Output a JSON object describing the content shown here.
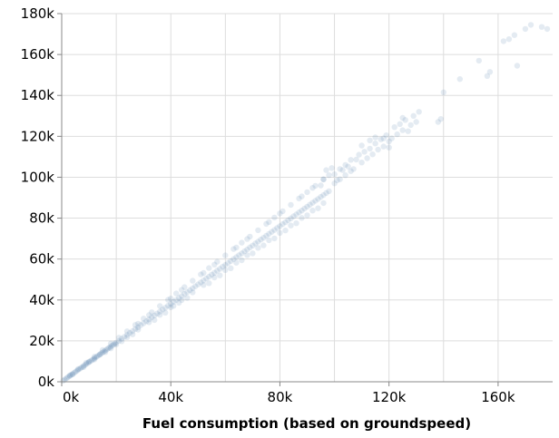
{
  "chart_data": {
    "type": "scatter",
    "title": "",
    "xlabel": "Fuel consumption (based on groundspeed)",
    "ylabel": "",
    "xlim": [
      0,
      180000
    ],
    "ylim": [
      0,
      180000
    ],
    "grid": true,
    "point_color": "#4c78a8",
    "point_opacity": 0.15,
    "x_ticks": [
      {
        "value": 0,
        "label": "0k"
      },
      {
        "value": 40000,
        "label": "40k"
      },
      {
        "value": 80000,
        "label": "80k"
      },
      {
        "value": 120000,
        "label": "120k"
      },
      {
        "value": 160000,
        "label": "160k"
      }
    ],
    "y_ticks": [
      {
        "value": 0,
        "label": "0k"
      },
      {
        "value": 20000,
        "label": "20k"
      },
      {
        "value": 40000,
        "label": "40k"
      },
      {
        "value": 60000,
        "label": "60k"
      },
      {
        "value": 80000,
        "label": "80k"
      },
      {
        "value": 100000,
        "label": "100k"
      },
      {
        "value": 120000,
        "label": "120k"
      },
      {
        "value": 140000,
        "label": "140k"
      },
      {
        "value": 160000,
        "label": "160k"
      },
      {
        "value": 180000,
        "label": "180k"
      }
    ],
    "points": [
      [
        500,
        480
      ],
      [
        1000,
        960
      ],
      [
        1500,
        1450
      ],
      [
        2000,
        1950
      ],
      [
        2500,
        2420
      ],
      [
        3000,
        2900
      ],
      [
        3500,
        3400
      ],
      [
        4000,
        3850
      ],
      [
        4500,
        4350
      ],
      [
        5000,
        4800
      ],
      [
        5500,
        5300
      ],
      [
        6000,
        5750
      ],
      [
        6500,
        6250
      ],
      [
        7000,
        6700
      ],
      [
        7500,
        7200
      ],
      [
        8000,
        7700
      ],
      [
        8500,
        8150
      ],
      [
        9000,
        8650
      ],
      [
        9500,
        9100
      ],
      [
        10000,
        9600
      ],
      [
        10500,
        10100
      ],
      [
        11000,
        10500
      ],
      [
        11500,
        11000
      ],
      [
        12000,
        11500
      ],
      [
        12500,
        12000
      ],
      [
        13000,
        12400
      ],
      [
        13500,
        12900
      ],
      [
        14000,
        13400
      ],
      [
        14500,
        13900
      ],
      [
        15000,
        14300
      ],
      [
        15500,
        14800
      ],
      [
        16000,
        15300
      ],
      [
        16500,
        15800
      ],
      [
        17000,
        16300
      ],
      [
        17500,
        16700
      ],
      [
        18000,
        17200
      ],
      [
        18500,
        17700
      ],
      [
        19000,
        18200
      ],
      [
        19500,
        18700
      ],
      [
        20000,
        19100
      ],
      [
        21000,
        20000
      ],
      [
        22000,
        21000
      ],
      [
        23000,
        22000
      ],
      [
        24000,
        22900
      ],
      [
        25000,
        23900
      ],
      [
        26000,
        24800
      ],
      [
        27000,
        25800
      ],
      [
        28000,
        26700
      ],
      [
        29000,
        27700
      ],
      [
        30000,
        28600
      ],
      [
        31000,
        29600
      ],
      [
        32000,
        30500
      ],
      [
        33000,
        31500
      ],
      [
        34000,
        32400
      ],
      [
        35000,
        33400
      ],
      [
        36000,
        34300
      ],
      [
        37000,
        35300
      ],
      [
        38000,
        36200
      ],
      [
        39000,
        37200
      ],
      [
        40000,
        38100
      ],
      [
        41000,
        39100
      ],
      [
        42000,
        40000
      ],
      [
        43000,
        41000
      ],
      [
        44000,
        41900
      ],
      [
        45000,
        42900
      ],
      [
        46000,
        43800
      ],
      [
        47000,
        44800
      ],
      [
        48000,
        45700
      ],
      [
        49000,
        46700
      ],
      [
        50000,
        47600
      ],
      [
        51000,
        48600
      ],
      [
        52000,
        49500
      ],
      [
        53000,
        50500
      ],
      [
        54000,
        51400
      ],
      [
        55000,
        52400
      ],
      [
        56000,
        53300
      ],
      [
        57000,
        54300
      ],
      [
        58000,
        55200
      ],
      [
        59000,
        56200
      ],
      [
        60000,
        57100
      ],
      [
        61000,
        58100
      ],
      [
        62000,
        59000
      ],
      [
        63000,
        60000
      ],
      [
        64000,
        60900
      ],
      [
        65000,
        61900
      ],
      [
        66000,
        62800
      ],
      [
        67000,
        63800
      ],
      [
        68000,
        64700
      ],
      [
        69000,
        65700
      ],
      [
        70000,
        66600
      ],
      [
        71000,
        67600
      ],
      [
        72000,
        68500
      ],
      [
        73000,
        69500
      ],
      [
        74000,
        70400
      ],
      [
        75000,
        71400
      ],
      [
        76000,
        72300
      ],
      [
        77000,
        73300
      ],
      [
        78000,
        74200
      ],
      [
        79000,
        75200
      ],
      [
        80000,
        76100
      ],
      [
        81000,
        77100
      ],
      [
        82000,
        78000
      ],
      [
        83000,
        79000
      ],
      [
        84000,
        79900
      ],
      [
        85000,
        80900
      ],
      [
        86000,
        81800
      ],
      [
        87000,
        82800
      ],
      [
        88000,
        83700
      ],
      [
        89000,
        84700
      ],
      [
        90000,
        85600
      ],
      [
        91000,
        86600
      ],
      [
        92000,
        87500
      ],
      [
        93000,
        88500
      ],
      [
        94000,
        89400
      ],
      [
        95000,
        90400
      ],
      [
        96000,
        91300
      ],
      [
        97000,
        92300
      ],
      [
        98000,
        93200
      ],
      [
        3000,
        3100
      ],
      [
        6000,
        6200
      ],
      [
        9000,
        9300
      ],
      [
        12000,
        12300
      ],
      [
        15000,
        15500
      ],
      [
        18000,
        18600
      ],
      [
        21000,
        21600
      ],
      [
        24000,
        24700
      ],
      [
        27000,
        27800
      ],
      [
        30000,
        30900
      ],
      [
        33000,
        34000
      ],
      [
        36000,
        37000
      ],
      [
        39000,
        40100
      ],
      [
        42000,
        43200
      ],
      [
        45000,
        46300
      ],
      [
        48000,
        49400
      ],
      [
        51000,
        52500
      ],
      [
        54000,
        55600
      ],
      [
        57000,
        58700
      ],
      [
        60000,
        61800
      ],
      [
        63000,
        64900
      ],
      [
        66000,
        68000
      ],
      [
        69000,
        71000
      ],
      [
        72000,
        74100
      ],
      [
        75000,
        77200
      ],
      [
        78000,
        80300
      ],
      [
        81000,
        83400
      ],
      [
        84000,
        86500
      ],
      [
        87000,
        89600
      ],
      [
        90000,
        92700
      ],
      [
        93000,
        95800
      ],
      [
        96000,
        98900
      ],
      [
        4000,
        3600
      ],
      [
        8000,
        7200
      ],
      [
        12000,
        10900
      ],
      [
        16000,
        14500
      ],
      [
        20000,
        18200
      ],
      [
        24000,
        21800
      ],
      [
        28000,
        25500
      ],
      [
        32000,
        29100
      ],
      [
        36000,
        32700
      ],
      [
        40000,
        36400
      ],
      [
        44000,
        40000
      ],
      [
        48000,
        43700
      ],
      [
        52000,
        47300
      ],
      [
        56000,
        51000
      ],
      [
        60000,
        54600
      ],
      [
        64000,
        58200
      ],
      [
        68000,
        61900
      ],
      [
        72000,
        65500
      ],
      [
        76000,
        69200
      ],
      [
        80000,
        72800
      ],
      [
        84000,
        76400
      ],
      [
        88000,
        80100
      ],
      [
        92000,
        83700
      ],
      [
        96000,
        87400
      ],
      [
        22000,
        19800
      ],
      [
        26000,
        23200
      ],
      [
        34000,
        30200
      ],
      [
        38000,
        33800
      ],
      [
        46000,
        41000
      ],
      [
        54000,
        48200
      ],
      [
        62000,
        55500
      ],
      [
        70000,
        62800
      ],
      [
        78000,
        70100
      ],
      [
        86000,
        77500
      ],
      [
        94000,
        84800
      ],
      [
        41000,
        37100
      ],
      [
        43000,
        38600
      ],
      [
        58000,
        52000
      ],
      [
        66000,
        59400
      ],
      [
        74000,
        66700
      ],
      [
        82000,
        74000
      ],
      [
        90000,
        81400
      ],
      [
        18000,
        16300
      ],
      [
        14000,
        13300
      ],
      [
        10000,
        9800
      ],
      [
        28000,
        28400
      ],
      [
        32000,
        32600
      ],
      [
        40000,
        40700
      ],
      [
        44000,
        44900
      ],
      [
        52000,
        53200
      ],
      [
        56000,
        57300
      ],
      [
        64000,
        65600
      ],
      [
        68000,
        69800
      ],
      [
        76000,
        78100
      ],
      [
        80000,
        82300
      ],
      [
        88000,
        90600
      ],
      [
        92000,
        94800
      ],
      [
        96000,
        99000
      ],
      [
        98000,
        101000
      ],
      [
        100000,
        97000
      ],
      [
        102000,
        99000
      ],
      [
        104000,
        101000
      ],
      [
        106000,
        103000
      ],
      [
        97000,
        103500
      ],
      [
        99000,
        104500
      ],
      [
        101000,
        98500
      ],
      [
        103000,
        103500
      ],
      [
        105000,
        105200
      ],
      [
        108000,
        108600
      ],
      [
        110000,
        107200
      ],
      [
        112000,
        109300
      ],
      [
        107000,
        104000
      ],
      [
        109000,
        111000
      ],
      [
        111000,
        112500
      ],
      [
        113000,
        114000
      ],
      [
        115000,
        116500
      ],
      [
        117000,
        118500
      ],
      [
        119000,
        120500
      ],
      [
        114000,
        111200
      ],
      [
        116000,
        113500
      ],
      [
        118000,
        115000
      ],
      [
        120000,
        117500
      ],
      [
        113000,
        118000
      ],
      [
        115000,
        119500
      ],
      [
        121000,
        119000
      ],
      [
        123000,
        121000
      ],
      [
        125000,
        123000
      ],
      [
        122000,
        124500
      ],
      [
        124000,
        126000
      ],
      [
        126000,
        128000
      ],
      [
        127000,
        122500
      ],
      [
        128000,
        125500
      ],
      [
        129000,
        130000
      ],
      [
        130000,
        127000
      ],
      [
        125000,
        129000
      ],
      [
        131000,
        132000
      ],
      [
        120000,
        114500
      ],
      [
        118000,
        119000
      ],
      [
        110000,
        115500
      ],
      [
        106000,
        108500
      ],
      [
        104000,
        106000
      ],
      [
        102000,
        104000
      ],
      [
        100000,
        101500
      ],
      [
        95000,
        96000
      ],
      [
        138000,
        127000
      ],
      [
        139000,
        128500
      ],
      [
        140000,
        141500
      ],
      [
        146000,
        148000
      ],
      [
        153000,
        157000
      ],
      [
        156000,
        149500
      ],
      [
        157000,
        151500
      ],
      [
        162000,
        166500
      ],
      [
        164000,
        167500
      ],
      [
        166000,
        169500
      ],
      [
        167000,
        154500
      ],
      [
        170000,
        172500
      ],
      [
        172000,
        174500
      ],
      [
        176000,
        173500
      ],
      [
        178000,
        172500
      ]
    ]
  }
}
